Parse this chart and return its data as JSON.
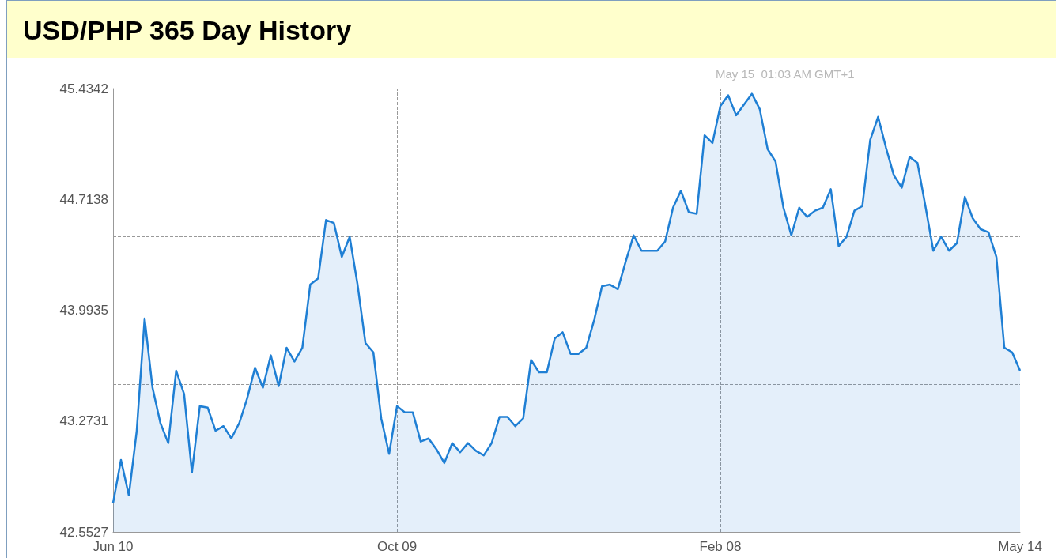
{
  "chart_data": {
    "type": "area",
    "title": "USD/PHP 365 Day History",
    "annotations": [
      "May 15  01:03 AM GMT+1"
    ],
    "categories": [
      "Jun 10",
      null,
      null,
      null,
      null,
      null,
      null,
      null,
      null,
      null,
      null,
      null,
      null,
      null,
      null,
      null,
      null,
      null,
      null,
      null,
      null,
      null,
      null,
      null,
      null,
      null,
      null,
      null,
      null,
      null,
      null,
      null,
      null,
      null,
      null,
      null,
      "Oct 09",
      null,
      null,
      null,
      null,
      null,
      null,
      null,
      null,
      null,
      null,
      null,
      null,
      null,
      null,
      null,
      null,
      null,
      null,
      null,
      null,
      null,
      null,
      null,
      null,
      null,
      null,
      null,
      null,
      null,
      null,
      null,
      null,
      null,
      null,
      null,
      null,
      null,
      null,
      null,
      null,
      "Feb 08",
      null,
      null,
      null,
      null,
      null,
      null,
      null,
      null,
      null,
      null,
      null,
      null,
      null,
      null,
      null,
      null,
      null,
      null,
      null,
      null,
      null,
      null,
      null,
      null,
      null,
      null,
      null,
      null,
      null,
      null,
      null,
      null,
      null,
      null,
      null,
      null,
      null,
      "May 14"
    ],
    "values": [
      42.74,
      43.02,
      42.79,
      43.21,
      43.94,
      43.49,
      43.26,
      43.13,
      43.6,
      43.45,
      42.94,
      43.37,
      43.36,
      43.21,
      43.24,
      43.16,
      43.26,
      43.42,
      43.62,
      43.49,
      43.7,
      43.5,
      43.75,
      43.66,
      43.75,
      44.16,
      44.2,
      44.58,
      44.56,
      44.34,
      44.47,
      44.16,
      43.78,
      43.72,
      43.29,
      43.06,
      43.37,
      43.33,
      43.33,
      43.14,
      43.16,
      43.09,
      43.0,
      43.13,
      43.07,
      43.13,
      43.08,
      43.05,
      43.13,
      43.3,
      43.3,
      43.24,
      43.29,
      43.67,
      43.59,
      43.59,
      43.81,
      43.85,
      43.71,
      43.71,
      43.75,
      43.93,
      44.15,
      44.16,
      44.13,
      44.31,
      44.48,
      44.38,
      44.38,
      44.38,
      44.44,
      44.66,
      44.77,
      44.63,
      44.62,
      45.13,
      45.08,
      45.32,
      45.39,
      45.26,
      45.33,
      45.4,
      45.3,
      45.04,
      44.96,
      44.66,
      44.48,
      44.66,
      44.6,
      44.64,
      44.66,
      44.78,
      44.41,
      44.47,
      44.64,
      44.67,
      45.1,
      45.25,
      45.05,
      44.87,
      44.79,
      44.99,
      44.95,
      44.67,
      44.38,
      44.47,
      44.38,
      44.43,
      44.73,
      44.59,
      44.52,
      44.5,
      44.34,
      43.75,
      43.72,
      43.6
    ],
    "color": "#1f7fd4",
    "ylim": [
      42.5527,
      45.4342
    ],
    "yticks": [
      42.5527,
      43.2731,
      43.9935,
      44.7138,
      45.4342
    ],
    "grid": false,
    "marker": "none",
    "ref_lines": [
      {
        "axis": "y",
        "value": 44.47,
        "color": "#999999",
        "line_style": "dashed"
      },
      {
        "axis": "y",
        "value": 43.51,
        "color": "#999999",
        "line_style": "dashed"
      },
      {
        "axis": "x",
        "value": "Oct 09",
        "color": "#999999",
        "line_style": "dashed"
      },
      {
        "axis": "x",
        "value": "Feb 08",
        "color": "#999999",
        "line_style": "dashed"
      }
    ]
  }
}
